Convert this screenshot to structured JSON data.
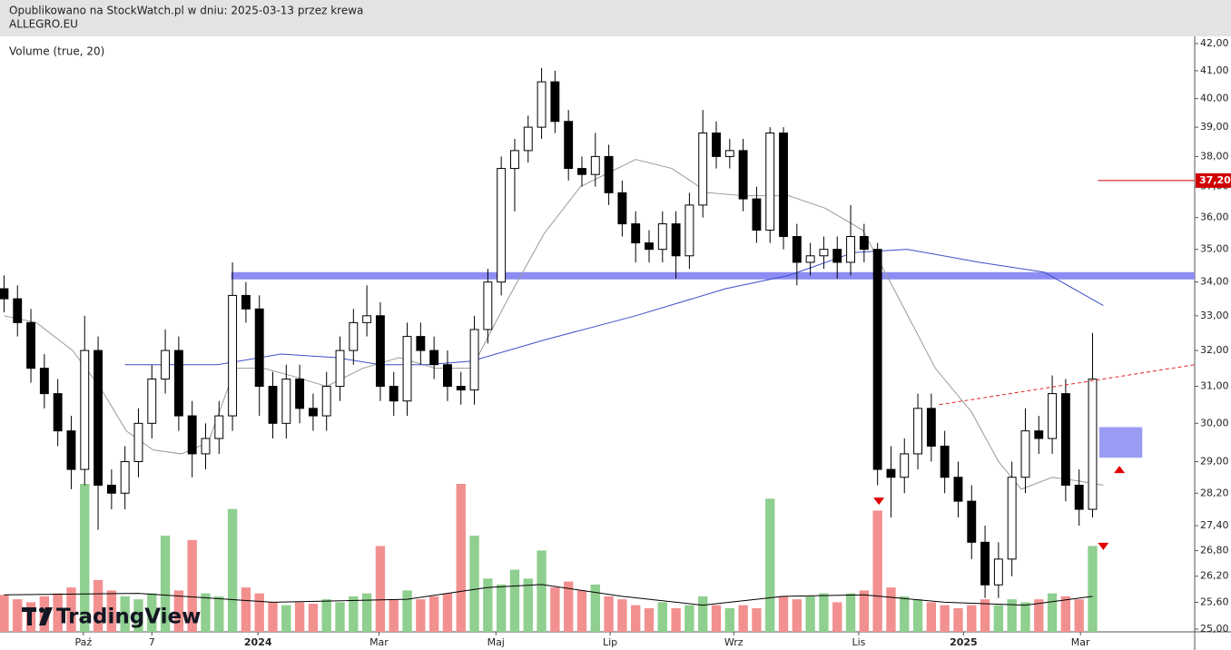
{
  "chart_data": {
    "type": "candlestick",
    "title": "Opublikowano na StockWatch.pl w dniu: 2025-03-13 przez krewa",
    "subtitle": "ALLEGRO.EU",
    "indicator_label": "Volume (true, 20)",
    "watermark": "TradingView",
    "log": true,
    "xlim": [
      -0.3,
      88.6
    ],
    "ylim": [
      24.94,
      42.27
    ],
    "volume_ylim": [
      0,
      10
    ],
    "xticks": [
      {
        "value": 5.9,
        "label": "Paź"
      },
      {
        "value": 11.0,
        "label": "7"
      },
      {
        "value": 18.9,
        "label": "2024",
        "bold": true
      },
      {
        "value": 27.9,
        "label": "Mar"
      },
      {
        "value": 36.6,
        "label": "Maj"
      },
      {
        "value": 45.1,
        "label": "Lip"
      },
      {
        "value": 54.3,
        "label": "Wrz"
      },
      {
        "value": 63.6,
        "label": "Lis"
      },
      {
        "value": 71.4,
        "label": "2025",
        "bold": true
      },
      {
        "value": 80.1,
        "label": "Mar"
      }
    ],
    "yticks": [
      {
        "value": 42,
        "label": "42,00"
      },
      {
        "value": 41,
        "label": "41,00"
      },
      {
        "value": 40,
        "label": "40,00"
      },
      {
        "value": 39,
        "label": "39,00"
      },
      {
        "value": 38,
        "label": "38,00"
      },
      {
        "value": 37,
        "label": "37,00"
      },
      {
        "value": 36,
        "label": "36,00"
      },
      {
        "value": 35,
        "label": "35,00"
      },
      {
        "value": 34,
        "label": "34,00"
      },
      {
        "value": 33,
        "label": "33,00"
      },
      {
        "value": 32,
        "label": "32,00"
      },
      {
        "value": 31,
        "label": "31,00"
      },
      {
        "value": 30,
        "label": "30,00"
      },
      {
        "value": 29,
        "label": "29,00"
      },
      {
        "value": 28.2,
        "label": "28,20"
      },
      {
        "value": 27.4,
        "label": "27,40"
      },
      {
        "value": 26.8,
        "label": "26,80"
      },
      {
        "value": 26.2,
        "label": "26,20"
      },
      {
        "value": 25.6,
        "label": "25,60"
      },
      {
        "value": 25,
        "label": "25,00"
      }
    ],
    "up_color": "#ffffff",
    "down_color": "#000000",
    "volume_up_color": "#8fcf8f",
    "volume_down_color": "#f29090",
    "x": [
      0,
      1,
      2,
      3,
      4,
      5,
      6,
      7,
      8,
      9,
      10,
      11,
      12,
      13,
      14,
      15,
      16,
      17,
      18,
      19,
      20,
      21,
      22,
      23,
      24,
      25,
      26,
      27,
      28,
      29,
      30,
      31,
      32,
      33,
      34,
      35,
      36,
      37,
      38,
      39,
      40,
      41,
      42,
      43,
      44,
      45,
      46,
      47,
      48,
      49,
      50,
      51,
      52,
      53,
      54,
      55,
      56,
      57,
      58,
      59,
      60,
      61,
      62,
      63,
      64,
      65,
      66,
      67,
      68,
      69,
      70,
      71,
      72,
      73,
      74,
      75,
      76,
      77,
      78,
      79,
      80,
      81
    ],
    "open": [
      33.8,
      33.5,
      32.8,
      31.5,
      30.8,
      29.8,
      28.8,
      32.0,
      28.4,
      28.2,
      29.0,
      30.0,
      31.2,
      32.0,
      30.2,
      29.2,
      29.6,
      30.2,
      33.6,
      33.2,
      31.0,
      30.0,
      31.2,
      30.4,
      30.2,
      31.0,
      32.0,
      32.8,
      33.0,
      31.0,
      30.6,
      32.4,
      32.0,
      31.6,
      31.0,
      30.9,
      32.6,
      34.0,
      37.6,
      38.2,
      39.0,
      40.6,
      39.2,
      37.6,
      37.4,
      38.0,
      36.8,
      35.8,
      35.2,
      35.0,
      35.8,
      34.8,
      36.4,
      38.8,
      38.0,
      38.2,
      36.6,
      35.6,
      38.8,
      35.4,
      34.6,
      34.8,
      35.0,
      34.6,
      35.4,
      35.0,
      28.8,
      28.6,
      29.2,
      30.4,
      29.4,
      28.6,
      28.0,
      27.0,
      26.0,
      26.6,
      28.6,
      29.8,
      29.6,
      30.8,
      28.4,
      27.8
    ],
    "high": [
      34.2,
      33.9,
      33.2,
      31.9,
      31.2,
      30.2,
      33.0,
      32.4,
      28.8,
      29.4,
      30.4,
      31.6,
      32.6,
      32.4,
      30.6,
      30.0,
      30.6,
      34.6,
      34.0,
      33.6,
      31.4,
      31.6,
      31.6,
      30.8,
      31.4,
      32.4,
      33.2,
      33.9,
      33.4,
      31.4,
      32.8,
      32.8,
      32.4,
      32.0,
      31.4,
      33.0,
      34.4,
      38.0,
      38.6,
      39.4,
      41.1,
      41.0,
      39.6,
      38.0,
      38.8,
      38.4,
      37.2,
      36.2,
      35.6,
      36.2,
      36.2,
      36.8,
      39.6,
      39.2,
      38.6,
      38.6,
      37.0,
      39.0,
      39.0,
      35.8,
      35.2,
      35.4,
      35.4,
      36.4,
      35.8,
      35.2,
      29.4,
      29.6,
      30.8,
      30.8,
      29.8,
      29.0,
      28.4,
      27.4,
      27.0,
      29.0,
      30.4,
      30.2,
      31.3,
      31.2,
      28.8,
      32.5
    ],
    "low": [
      33.1,
      32.4,
      31.1,
      30.4,
      29.4,
      28.3,
      28.4,
      27.3,
      27.8,
      27.8,
      28.6,
      29.6,
      30.8,
      29.8,
      28.6,
      28.8,
      29.2,
      29.8,
      32.8,
      30.2,
      29.6,
      29.6,
      30.0,
      29.8,
      29.8,
      30.6,
      31.6,
      32.4,
      30.6,
      30.2,
      30.2,
      31.6,
      31.2,
      30.6,
      30.5,
      30.5,
      32.2,
      33.6,
      36.2,
      37.8,
      38.6,
      38.8,
      37.2,
      37.0,
      37.0,
      36.4,
      35.4,
      34.6,
      34.6,
      34.6,
      34.1,
      34.4,
      36.0,
      37.6,
      37.6,
      36.2,
      35.2,
      35.2,
      35.0,
      33.9,
      34.2,
      34.4,
      34.1,
      34.2,
      34.6,
      28.4,
      27.6,
      28.2,
      28.8,
      29.0,
      28.2,
      27.6,
      26.6,
      25.7,
      25.7,
      26.2,
      28.2,
      29.2,
      29.2,
      28.0,
      27.4,
      27.6
    ],
    "close": [
      33.5,
      32.8,
      31.5,
      30.8,
      29.8,
      28.8,
      32.0,
      28.4,
      28.2,
      29.0,
      30.0,
      31.2,
      32.0,
      30.2,
      29.2,
      29.6,
      30.2,
      33.6,
      33.2,
      31.0,
      30.0,
      31.2,
      30.4,
      30.2,
      31.0,
      32.0,
      32.8,
      33.0,
      31.0,
      30.6,
      32.4,
      32.0,
      31.6,
      31.0,
      30.9,
      32.6,
      34.0,
      37.6,
      38.2,
      39.0,
      40.6,
      39.2,
      37.6,
      37.4,
      38.0,
      36.8,
      35.8,
      35.2,
      35.0,
      35.8,
      34.8,
      36.4,
      38.8,
      38.0,
      38.2,
      36.6,
      35.6,
      38.8,
      35.4,
      34.6,
      34.8,
      35.0,
      34.6,
      35.4,
      35.0,
      28.8,
      28.6,
      29.2,
      30.4,
      29.4,
      28.6,
      28.0,
      27.0,
      26.0,
      26.6,
      28.6,
      29.8,
      29.6,
      30.8,
      28.4,
      27.8,
      31.2
    ],
    "volume": [
      2.5,
      2.2,
      2.0,
      2.4,
      2.6,
      3.0,
      10.0,
      3.5,
      2.8,
      2.4,
      2.2,
      2.6,
      6.5,
      2.8,
      6.2,
      2.6,
      2.4,
      8.3,
      3.0,
      2.6,
      2.0,
      1.8,
      2.0,
      1.9,
      2.2,
      2.0,
      2.4,
      2.6,
      5.8,
      2.2,
      2.8,
      2.2,
      2.4,
      2.6,
      10.0,
      6.5,
      3.6,
      3.2,
      4.2,
      3.6,
      5.5,
      3.0,
      3.4,
      2.8,
      3.2,
      2.4,
      2.2,
      1.8,
      1.6,
      2.0,
      1.6,
      1.8,
      2.4,
      1.8,
      1.6,
      1.8,
      1.6,
      9.0,
      2.4,
      2.2,
      2.4,
      2.6,
      2.0,
      2.6,
      2.8,
      8.2,
      3.0,
      2.4,
      2.2,
      2.0,
      1.8,
      1.6,
      1.8,
      2.2,
      1.8,
      2.2,
      2.0,
      2.2,
      2.6,
      2.4,
      2.2,
      5.8
    ],
    "moving_averages": [
      {
        "color": "#9a9a9a",
        "x": [
          0,
          2.4,
          5.1,
          7.1,
          9.1,
          11.1,
          13.2,
          15.2,
          17.2,
          19.3,
          21.3,
          24.0,
          26.7,
          29.4,
          32.1,
          34.8,
          37.5,
          40.2,
          42.9,
          47.0,
          49.7,
          52.4,
          55.1,
          58.4,
          61.1,
          63.9,
          66.6,
          69.3,
          72.0,
          74.0,
          75.7,
          78.0,
          80.1,
          81.8
        ],
        "values": [
          33.0,
          32.8,
          32.0,
          31.0,
          29.8,
          29.3,
          29.2,
          29.5,
          31.5,
          31.5,
          31.3,
          31.0,
          31.5,
          31.8,
          31.5,
          31.5,
          33.5,
          35.5,
          37.0,
          37.9,
          37.6,
          36.8,
          36.7,
          36.7,
          36.3,
          35.6,
          33.5,
          31.5,
          30.3,
          29.0,
          28.3,
          28.6,
          28.5,
          28.4
        ]
      },
      {
        "color": "#3c4fc8",
        "x": [
          9.0,
          15.9,
          20.6,
          24.7,
          28.0,
          31.4,
          34.8,
          40.2,
          47.0,
          53.7,
          58.4,
          63.2,
          67.2,
          72.6,
          77.4,
          81.8
        ],
        "values": [
          31.6,
          31.6,
          31.9,
          31.8,
          31.6,
          31.6,
          31.7,
          32.3,
          33.0,
          33.8,
          34.2,
          34.9,
          35.0,
          34.6,
          34.3,
          33.3
        ]
      }
    ],
    "volume_ma": {
      "color": "#000000",
      "x": [
        0,
        10,
        20,
        30,
        36,
        40,
        46,
        52,
        58,
        64,
        70,
        76,
        81
      ],
      "values": [
        2.5,
        2.6,
        2.0,
        2.2,
        3.0,
        3.2,
        2.4,
        1.8,
        2.4,
        2.5,
        2.0,
        1.8,
        2.4
      ]
    },
    "zone": {
      "color": "#8c8cf5",
      "x": [
        16.9,
        88.6
      ],
      "values": [
        34.08,
        34.3
      ]
    },
    "trendline": {
      "color": "#e02020",
      "x": [
        69.6,
        88.6
      ],
      "values": [
        30.5,
        31.6
      ]
    },
    "box": {
      "color": "#9a9cf4",
      "x": [
        81.5,
        84.7
      ],
      "values": [
        29.1,
        29.9
      ]
    },
    "price_line": {
      "color": "#d00000",
      "x": [
        81.4,
        88.6
      ],
      "value": 37.2,
      "label": "37,20"
    },
    "markers": [
      {
        "x": 65.1,
        "value": 28.0,
        "shape": "down",
        "color": "#e00000"
      },
      {
        "x": 81.8,
        "value": 26.9,
        "shape": "down",
        "color": "#e00000"
      },
      {
        "x": 83.0,
        "value": 28.8,
        "shape": "up",
        "color": "#e00000"
      }
    ]
  }
}
